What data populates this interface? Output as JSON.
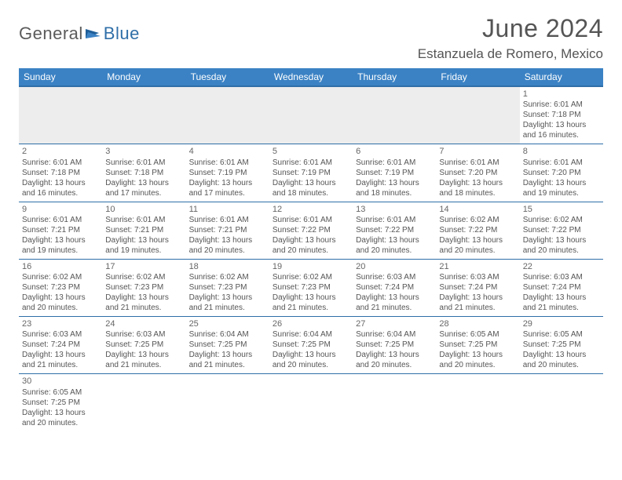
{
  "logo": {
    "part1": "General",
    "part2": "Blue"
  },
  "title": "June 2024",
  "location": "Estanzuela de Romero, Mexico",
  "colors": {
    "header_bg": "#3b82c4",
    "header_border": "#2f6fa8",
    "logo_gray": "#5b5b5b",
    "logo_blue": "#2f6fa8",
    "blank_bg": "#ededed"
  },
  "day_headers": [
    "Sunday",
    "Monday",
    "Tuesday",
    "Wednesday",
    "Thursday",
    "Friday",
    "Saturday"
  ],
  "weeks": [
    [
      null,
      null,
      null,
      null,
      null,
      null,
      {
        "n": "1",
        "sunrise": "Sunrise: 6:01 AM",
        "sunset": "Sunset: 7:18 PM",
        "day1": "Daylight: 13 hours",
        "day2": "and 16 minutes."
      }
    ],
    [
      {
        "n": "2",
        "sunrise": "Sunrise: 6:01 AM",
        "sunset": "Sunset: 7:18 PM",
        "day1": "Daylight: 13 hours",
        "day2": "and 16 minutes."
      },
      {
        "n": "3",
        "sunrise": "Sunrise: 6:01 AM",
        "sunset": "Sunset: 7:18 PM",
        "day1": "Daylight: 13 hours",
        "day2": "and 17 minutes."
      },
      {
        "n": "4",
        "sunrise": "Sunrise: 6:01 AM",
        "sunset": "Sunset: 7:19 PM",
        "day1": "Daylight: 13 hours",
        "day2": "and 17 minutes."
      },
      {
        "n": "5",
        "sunrise": "Sunrise: 6:01 AM",
        "sunset": "Sunset: 7:19 PM",
        "day1": "Daylight: 13 hours",
        "day2": "and 18 minutes."
      },
      {
        "n": "6",
        "sunrise": "Sunrise: 6:01 AM",
        "sunset": "Sunset: 7:19 PM",
        "day1": "Daylight: 13 hours",
        "day2": "and 18 minutes."
      },
      {
        "n": "7",
        "sunrise": "Sunrise: 6:01 AM",
        "sunset": "Sunset: 7:20 PM",
        "day1": "Daylight: 13 hours",
        "day2": "and 18 minutes."
      },
      {
        "n": "8",
        "sunrise": "Sunrise: 6:01 AM",
        "sunset": "Sunset: 7:20 PM",
        "day1": "Daylight: 13 hours",
        "day2": "and 19 minutes."
      }
    ],
    [
      {
        "n": "9",
        "sunrise": "Sunrise: 6:01 AM",
        "sunset": "Sunset: 7:21 PM",
        "day1": "Daylight: 13 hours",
        "day2": "and 19 minutes."
      },
      {
        "n": "10",
        "sunrise": "Sunrise: 6:01 AM",
        "sunset": "Sunset: 7:21 PM",
        "day1": "Daylight: 13 hours",
        "day2": "and 19 minutes."
      },
      {
        "n": "11",
        "sunrise": "Sunrise: 6:01 AM",
        "sunset": "Sunset: 7:21 PM",
        "day1": "Daylight: 13 hours",
        "day2": "and 20 minutes."
      },
      {
        "n": "12",
        "sunrise": "Sunrise: 6:01 AM",
        "sunset": "Sunset: 7:22 PM",
        "day1": "Daylight: 13 hours",
        "day2": "and 20 minutes."
      },
      {
        "n": "13",
        "sunrise": "Sunrise: 6:01 AM",
        "sunset": "Sunset: 7:22 PM",
        "day1": "Daylight: 13 hours",
        "day2": "and 20 minutes."
      },
      {
        "n": "14",
        "sunrise": "Sunrise: 6:02 AM",
        "sunset": "Sunset: 7:22 PM",
        "day1": "Daylight: 13 hours",
        "day2": "and 20 minutes."
      },
      {
        "n": "15",
        "sunrise": "Sunrise: 6:02 AM",
        "sunset": "Sunset: 7:22 PM",
        "day1": "Daylight: 13 hours",
        "day2": "and 20 minutes."
      }
    ],
    [
      {
        "n": "16",
        "sunrise": "Sunrise: 6:02 AM",
        "sunset": "Sunset: 7:23 PM",
        "day1": "Daylight: 13 hours",
        "day2": "and 20 minutes."
      },
      {
        "n": "17",
        "sunrise": "Sunrise: 6:02 AM",
        "sunset": "Sunset: 7:23 PM",
        "day1": "Daylight: 13 hours",
        "day2": "and 21 minutes."
      },
      {
        "n": "18",
        "sunrise": "Sunrise: 6:02 AM",
        "sunset": "Sunset: 7:23 PM",
        "day1": "Daylight: 13 hours",
        "day2": "and 21 minutes."
      },
      {
        "n": "19",
        "sunrise": "Sunrise: 6:02 AM",
        "sunset": "Sunset: 7:23 PM",
        "day1": "Daylight: 13 hours",
        "day2": "and 21 minutes."
      },
      {
        "n": "20",
        "sunrise": "Sunrise: 6:03 AM",
        "sunset": "Sunset: 7:24 PM",
        "day1": "Daylight: 13 hours",
        "day2": "and 21 minutes."
      },
      {
        "n": "21",
        "sunrise": "Sunrise: 6:03 AM",
        "sunset": "Sunset: 7:24 PM",
        "day1": "Daylight: 13 hours",
        "day2": "and 21 minutes."
      },
      {
        "n": "22",
        "sunrise": "Sunrise: 6:03 AM",
        "sunset": "Sunset: 7:24 PM",
        "day1": "Daylight: 13 hours",
        "day2": "and 21 minutes."
      }
    ],
    [
      {
        "n": "23",
        "sunrise": "Sunrise: 6:03 AM",
        "sunset": "Sunset: 7:24 PM",
        "day1": "Daylight: 13 hours",
        "day2": "and 21 minutes."
      },
      {
        "n": "24",
        "sunrise": "Sunrise: 6:03 AM",
        "sunset": "Sunset: 7:25 PM",
        "day1": "Daylight: 13 hours",
        "day2": "and 21 minutes."
      },
      {
        "n": "25",
        "sunrise": "Sunrise: 6:04 AM",
        "sunset": "Sunset: 7:25 PM",
        "day1": "Daylight: 13 hours",
        "day2": "and 21 minutes."
      },
      {
        "n": "26",
        "sunrise": "Sunrise: 6:04 AM",
        "sunset": "Sunset: 7:25 PM",
        "day1": "Daylight: 13 hours",
        "day2": "and 20 minutes."
      },
      {
        "n": "27",
        "sunrise": "Sunrise: 6:04 AM",
        "sunset": "Sunset: 7:25 PM",
        "day1": "Daylight: 13 hours",
        "day2": "and 20 minutes."
      },
      {
        "n": "28",
        "sunrise": "Sunrise: 6:05 AM",
        "sunset": "Sunset: 7:25 PM",
        "day1": "Daylight: 13 hours",
        "day2": "and 20 minutes."
      },
      {
        "n": "29",
        "sunrise": "Sunrise: 6:05 AM",
        "sunset": "Sunset: 7:25 PM",
        "day1": "Daylight: 13 hours",
        "day2": "and 20 minutes."
      }
    ],
    [
      {
        "n": "30",
        "sunrise": "Sunrise: 6:05 AM",
        "sunset": "Sunset: 7:25 PM",
        "day1": "Daylight: 13 hours",
        "day2": "and 20 minutes."
      },
      null,
      null,
      null,
      null,
      null,
      null
    ]
  ]
}
